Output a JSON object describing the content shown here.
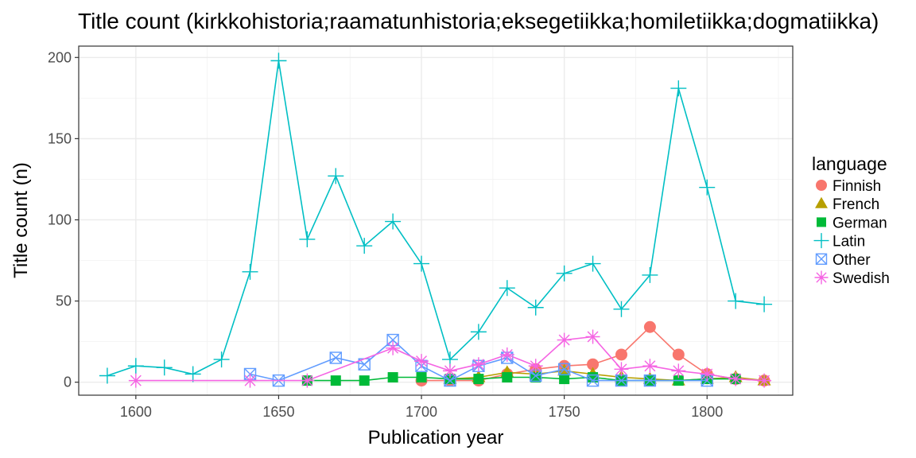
{
  "chart_data": {
    "type": "line",
    "title": "Title count (kirkkohistoria;raamatunhistoria;eksegetiikka;homiletiikka;dogmatiikka)",
    "xlabel": "Publication year",
    "ylabel": "Title count (n)",
    "xlim": [
      1580,
      1830
    ],
    "ylim": [
      -8,
      207
    ],
    "xticks": [
      1600,
      1650,
      1700,
      1750,
      1800
    ],
    "yticks": [
      0,
      50,
      100,
      150,
      200
    ],
    "grid": true,
    "legend": {
      "title": "language",
      "position": "right"
    },
    "series": [
      {
        "name": "Finnish",
        "color": "#F8766D",
        "marker": "circle",
        "x": [
          1700,
          1710,
          1720,
          1730,
          1740,
          1750,
          1760,
          1770,
          1780,
          1790,
          1800,
          1810,
          1820
        ],
        "y": [
          1,
          1,
          1,
          5,
          8,
          10,
          11,
          17,
          34,
          17,
          5,
          2,
          1
        ]
      },
      {
        "name": "French",
        "color": "#B79F00",
        "marker": "triangle",
        "x": [
          1710,
          1720,
          1730,
          1740,
          1750,
          1760,
          1770,
          1780,
          1790,
          1800,
          1810,
          1820
        ],
        "y": [
          2,
          3,
          6,
          5,
          7,
          5,
          3,
          2,
          1,
          2,
          3,
          1
        ]
      },
      {
        "name": "German",
        "color": "#00BA38",
        "marker": "square",
        "x": [
          1660,
          1670,
          1680,
          1690,
          1700,
          1710,
          1720,
          1730,
          1740,
          1750,
          1760,
          1770,
          1780,
          1790,
          1800,
          1810
        ],
        "y": [
          1,
          1,
          1,
          3,
          3,
          2,
          2,
          3,
          3,
          2,
          3,
          1,
          1,
          1,
          2,
          2
        ]
      },
      {
        "name": "Latin",
        "color": "#00BFC4",
        "marker": "plus",
        "x": [
          1590,
          1600,
          1610,
          1620,
          1630,
          1640,
          1650,
          1660,
          1670,
          1680,
          1690,
          1700,
          1710,
          1720,
          1730,
          1740,
          1750,
          1760,
          1770,
          1780,
          1790,
          1800,
          1810,
          1820
        ],
        "y": [
          4,
          10,
          9,
          5,
          14,
          68,
          198,
          88,
          127,
          84,
          99,
          73,
          14,
          31,
          58,
          46,
          67,
          73,
          45,
          66,
          181,
          120,
          50,
          48
        ]
      },
      {
        "name": "Other",
        "color": "#619CFF",
        "marker": "boxx",
        "x": [
          1640,
          1650,
          1670,
          1680,
          1690,
          1700,
          1710,
          1720,
          1730,
          1740,
          1750,
          1760,
          1770,
          1780,
          1800
        ],
        "y": [
          5,
          1,
          15,
          11,
          26,
          10,
          1,
          10,
          15,
          4,
          8,
          1,
          1,
          1,
          1
        ]
      },
      {
        "name": "Swedish",
        "color": "#F564E3",
        "marker": "star",
        "x": [
          1600,
          1640,
          1660,
          1690,
          1700,
          1710,
          1720,
          1730,
          1740,
          1750,
          1760,
          1770,
          1780,
          1790,
          1800,
          1810,
          1820
        ],
        "y": [
          1,
          1,
          1,
          21,
          13,
          7,
          11,
          17,
          10,
          26,
          28,
          8,
          10,
          7,
          5,
          2,
          1
        ]
      }
    ]
  }
}
